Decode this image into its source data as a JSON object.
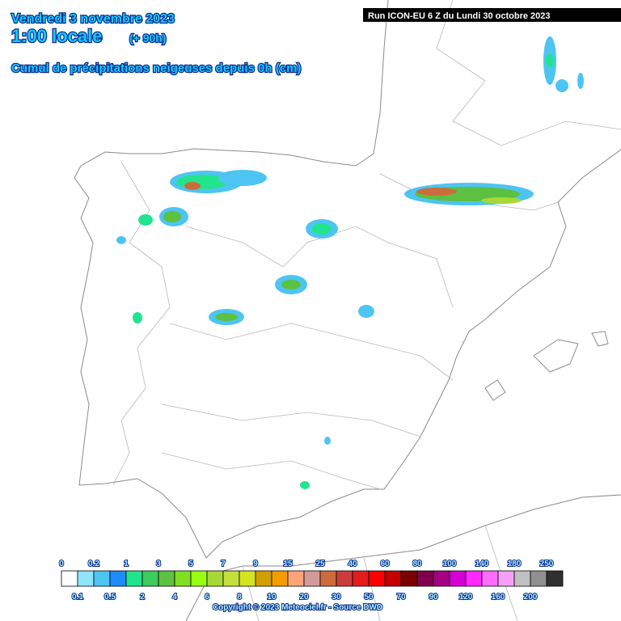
{
  "header": {
    "date": "Vendredi 3 novembre 2023",
    "time": "1:00 locale",
    "lead": "(+ 90h)",
    "title": "Cumul de précipitations neigeuses depuis 0h (cm)",
    "run": "Run ICON-EU 6 Z du Lundi 30 octobre 2023"
  },
  "legend": {
    "thresholds": [
      0,
      0.1,
      0.2,
      0.5,
      1,
      2,
      3,
      4,
      5,
      6,
      7,
      8,
      9,
      10,
      15,
      20,
      25,
      30,
      40,
      50,
      60,
      70,
      80,
      90,
      100,
      120,
      140,
      160,
      180,
      200,
      250
    ],
    "colors": [
      "#ffffff",
      "#90e4fc",
      "#4ec4f2",
      "#1e8cff",
      "#22e48c",
      "#3ccc5c",
      "#5cc040",
      "#80e020",
      "#98ff10",
      "#a8d838",
      "#c4e03c",
      "#d4e420",
      "#d0a000",
      "#f49c00",
      "#ffa478",
      "#d49a9a",
      "#cc6c3c",
      "#cc3c3c",
      "#e41c1c",
      "#ff0000",
      "#c40000",
      "#7c0000",
      "#80004c",
      "#a40084",
      "#d400d4",
      "#ff28ff",
      "#ff6cff",
      "#f8a0f8",
      "#c0c0c0",
      "#909090",
      "#303030"
    ]
  },
  "footer": {
    "copyright": "Copyright © 2023 Meteociel.fr - Source DWD"
  }
}
